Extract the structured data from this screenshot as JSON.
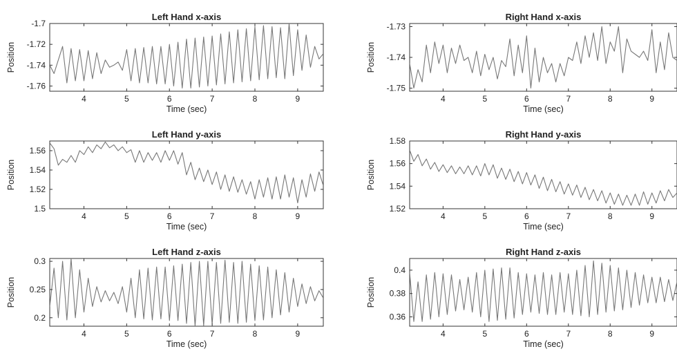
{
  "chart_data": [
    {
      "type": "line",
      "title": "Left Hand x-axis",
      "xlabel": "Time (sec)",
      "ylabel": "Position",
      "xlim": [
        3.2,
        9.6
      ],
      "ylim": [
        -1.765,
        -1.7
      ],
      "xticks": [
        "4",
        "5",
        "6",
        "7",
        "8",
        "9"
      ],
      "yticks": [
        "-1.7",
        "-1.72",
        "-1.74",
        "-1.76"
      ],
      "grid": false,
      "series": [
        {
          "color": "#777777",
          "x": [
            3.2,
            3.3,
            3.4,
            3.5,
            3.6,
            3.7,
            3.8,
            3.9,
            4.0,
            4.1,
            4.2,
            4.3,
            4.4,
            4.5,
            4.6,
            4.7,
            4.8,
            4.9,
            5.0,
            5.1,
            5.2,
            5.3,
            5.4,
            5.5,
            5.6,
            5.7,
            5.8,
            5.9,
            6.0,
            6.1,
            6.2,
            6.3,
            6.4,
            6.5,
            6.6,
            6.7,
            6.8,
            6.9,
            7.0,
            7.1,
            7.2,
            7.3,
            7.4,
            7.5,
            7.6,
            7.7,
            7.8,
            7.9,
            8.0,
            8.1,
            8.2,
            8.3,
            8.4,
            8.5,
            8.6,
            8.7,
            8.8,
            8.9,
            9.0,
            9.1,
            9.2,
            9.3,
            9.4,
            9.5,
            9.6
          ],
          "y": [
            -1.74,
            -1.748,
            -1.735,
            -1.722,
            -1.757,
            -1.724,
            -1.755,
            -1.725,
            -1.755,
            -1.726,
            -1.753,
            -1.728,
            -1.748,
            -1.735,
            -1.742,
            -1.74,
            -1.737,
            -1.745,
            -1.725,
            -1.755,
            -1.724,
            -1.757,
            -1.723,
            -1.757,
            -1.722,
            -1.758,
            -1.722,
            -1.758,
            -1.72,
            -1.76,
            -1.718,
            -1.762,
            -1.715,
            -1.762,
            -1.714,
            -1.761,
            -1.713,
            -1.76,
            -1.712,
            -1.759,
            -1.71,
            -1.758,
            -1.708,
            -1.757,
            -1.706,
            -1.756,
            -1.705,
            -1.755,
            -1.703,
            -1.754,
            -1.702,
            -1.753,
            -1.703,
            -1.752,
            -1.704,
            -1.753,
            -1.7,
            -1.75,
            -1.706,
            -1.745,
            -1.711,
            -1.742,
            -1.722,
            -1.734,
            -1.729
          ]
        }
      ]
    },
    {
      "type": "line",
      "title": "Right Hand x-axis",
      "xlabel": "Time (sec)",
      "ylabel": "Position",
      "xlim": [
        3.2,
        9.6
      ],
      "ylim": [
        -1.751,
        -1.729
      ],
      "xticks": [
        "4",
        "5",
        "6",
        "7",
        "8",
        "9"
      ],
      "yticks": [
        "-1.73",
        "-1.74",
        "-1.75"
      ],
      "grid": false,
      "series": [
        {
          "color": "#777777",
          "x": [
            3.2,
            3.3,
            3.4,
            3.5,
            3.6,
            3.7,
            3.8,
            3.9,
            4.0,
            4.1,
            4.2,
            4.3,
            4.4,
            4.5,
            4.6,
            4.7,
            4.8,
            4.9,
            5.0,
            5.1,
            5.2,
            5.3,
            5.4,
            5.5,
            5.6,
            5.7,
            5.8,
            5.9,
            6.0,
            6.1,
            6.2,
            6.3,
            6.4,
            6.5,
            6.6,
            6.7,
            6.8,
            6.9,
            7.0,
            7.1,
            7.2,
            7.3,
            7.4,
            7.5,
            7.6,
            7.7,
            7.8,
            7.9,
            8.0,
            8.1,
            8.2,
            8.3,
            8.4,
            8.5,
            8.6,
            8.7,
            8.8,
            8.9,
            9.0,
            9.1,
            9.2,
            9.3,
            9.4,
            9.5,
            9.6
          ],
          "y": [
            -1.742,
            -1.75,
            -1.744,
            -1.748,
            -1.736,
            -1.745,
            -1.735,
            -1.742,
            -1.736,
            -1.745,
            -1.737,
            -1.742,
            -1.736,
            -1.741,
            -1.74,
            -1.745,
            -1.738,
            -1.746,
            -1.739,
            -1.744,
            -1.74,
            -1.747,
            -1.741,
            -1.743,
            -1.734,
            -1.746,
            -1.736,
            -1.745,
            -1.733,
            -1.75,
            -1.737,
            -1.748,
            -1.74,
            -1.745,
            -1.742,
            -1.748,
            -1.742,
            -1.746,
            -1.74,
            -1.741,
            -1.735,
            -1.742,
            -1.733,
            -1.74,
            -1.732,
            -1.741,
            -1.73,
            -1.742,
            -1.735,
            -1.738,
            -1.73,
            -1.745,
            -1.734,
            -1.738,
            -1.739,
            -1.74,
            -1.738,
            -1.741,
            -1.731,
            -1.745,
            -1.735,
            -1.744,
            -1.732,
            -1.74,
            -1.741
          ]
        }
      ]
    },
    {
      "type": "line",
      "title": "Left Hand y-axis",
      "xlabel": "Time (sec)",
      "ylabel": "Position",
      "xlim": [
        3.2,
        9.6
      ],
      "ylim": [
        1.5,
        1.57
      ],
      "xticks": [
        "4",
        "5",
        "6",
        "7",
        "8",
        "9"
      ],
      "yticks": [
        "1.56",
        "1.54",
        "1.52",
        "1.5"
      ],
      "grid": false,
      "series": [
        {
          "color": "#777777",
          "x": [
            3.2,
            3.3,
            3.4,
            3.5,
            3.6,
            3.7,
            3.8,
            3.9,
            4.0,
            4.1,
            4.2,
            4.3,
            4.4,
            4.5,
            4.6,
            4.7,
            4.8,
            4.9,
            5.0,
            5.1,
            5.2,
            5.3,
            5.4,
            5.5,
            5.6,
            5.7,
            5.8,
            5.9,
            6.0,
            6.1,
            6.2,
            6.3,
            6.4,
            6.5,
            6.6,
            6.7,
            6.8,
            6.9,
            7.0,
            7.1,
            7.2,
            7.3,
            7.4,
            7.5,
            7.6,
            7.7,
            7.8,
            7.9,
            8.0,
            8.1,
            8.2,
            8.3,
            8.4,
            8.5,
            8.6,
            8.7,
            8.8,
            8.9,
            9.0,
            9.1,
            9.2,
            9.3,
            9.4,
            9.5,
            9.6
          ],
          "y": [
            1.568,
            1.562,
            1.545,
            1.551,
            1.548,
            1.555,
            1.548,
            1.56,
            1.556,
            1.564,
            1.558,
            1.566,
            1.562,
            1.569,
            1.563,
            1.566,
            1.56,
            1.564,
            1.558,
            1.561,
            1.548,
            1.56,
            1.548,
            1.558,
            1.55,
            1.558,
            1.548,
            1.56,
            1.55,
            1.56,
            1.546,
            1.558,
            1.535,
            1.548,
            1.53,
            1.542,
            1.528,
            1.54,
            1.525,
            1.538,
            1.52,
            1.535,
            1.518,
            1.533,
            1.517,
            1.53,
            1.515,
            1.528,
            1.51,
            1.53,
            1.512,
            1.532,
            1.51,
            1.533,
            1.51,
            1.535,
            1.512,
            1.532,
            1.506,
            1.53,
            1.512,
            1.536,
            1.518,
            1.538,
            1.524
          ]
        }
      ]
    },
    {
      "type": "line",
      "title": "Right Hand y-axis",
      "xlabel": "Time (sec)",
      "ylabel": "Position",
      "xlim": [
        3.2,
        9.6
      ],
      "ylim": [
        1.52,
        1.58
      ],
      "xticks": [
        "4",
        "5",
        "6",
        "7",
        "8",
        "9"
      ],
      "yticks": [
        "1.58",
        "1.56",
        "1.54",
        "1.52"
      ],
      "grid": false,
      "series": [
        {
          "color": "#777777",
          "x": [
            3.2,
            3.3,
            3.4,
            3.5,
            3.6,
            3.7,
            3.8,
            3.9,
            4.0,
            4.1,
            4.2,
            4.3,
            4.4,
            4.5,
            4.6,
            4.7,
            4.8,
            4.9,
            5.0,
            5.1,
            5.2,
            5.3,
            5.4,
            5.5,
            5.6,
            5.7,
            5.8,
            5.9,
            6.0,
            6.1,
            6.2,
            6.3,
            6.4,
            6.5,
            6.6,
            6.7,
            6.8,
            6.9,
            7.0,
            7.1,
            7.2,
            7.3,
            7.4,
            7.5,
            7.6,
            7.7,
            7.8,
            7.9,
            8.0,
            8.1,
            8.2,
            8.3,
            8.4,
            8.5,
            8.6,
            8.7,
            8.8,
            8.9,
            9.0,
            9.1,
            9.2,
            9.3,
            9.4,
            9.5,
            9.6
          ],
          "y": [
            1.572,
            1.562,
            1.568,
            1.558,
            1.564,
            1.555,
            1.561,
            1.553,
            1.559,
            1.552,
            1.558,
            1.551,
            1.557,
            1.551,
            1.558,
            1.55,
            1.558,
            1.549,
            1.56,
            1.55,
            1.559,
            1.547,
            1.556,
            1.546,
            1.555,
            1.544,
            1.553,
            1.542,
            1.552,
            1.541,
            1.55,
            1.538,
            1.548,
            1.536,
            1.546,
            1.535,
            1.544,
            1.533,
            1.542,
            1.532,
            1.541,
            1.53,
            1.539,
            1.528,
            1.537,
            1.527,
            1.536,
            1.525,
            1.534,
            1.524,
            1.533,
            1.523,
            1.532,
            1.523,
            1.533,
            1.523,
            1.535,
            1.524,
            1.534,
            1.525,
            1.536,
            1.527,
            1.537,
            1.53,
            1.534
          ]
        }
      ]
    },
    {
      "type": "line",
      "title": "Left Hand z-axis",
      "xlabel": "Time (sec)",
      "ylabel": "Position",
      "xlim": [
        3.2,
        9.6
      ],
      "ylim": [
        0.185,
        0.305
      ],
      "xticks": [
        "4",
        "5",
        "6",
        "7",
        "8",
        "9"
      ],
      "yticks": [
        "0.3",
        "0.25",
        "0.2"
      ],
      "grid": false,
      "series": [
        {
          "color": "#777777",
          "x": [
            3.2,
            3.3,
            3.4,
            3.5,
            3.6,
            3.7,
            3.8,
            3.9,
            4.0,
            4.1,
            4.2,
            4.3,
            4.4,
            4.5,
            4.6,
            4.7,
            4.8,
            4.9,
            5.0,
            5.1,
            5.2,
            5.3,
            5.4,
            5.5,
            5.6,
            5.7,
            5.8,
            5.9,
            6.0,
            6.1,
            6.2,
            6.3,
            6.4,
            6.5,
            6.6,
            6.7,
            6.8,
            6.9,
            7.0,
            7.1,
            7.2,
            7.3,
            7.4,
            7.5,
            7.6,
            7.7,
            7.8,
            7.9,
            8.0,
            8.1,
            8.2,
            8.3,
            8.4,
            8.5,
            8.6,
            8.7,
            8.8,
            8.9,
            9.0,
            9.1,
            9.2,
            9.3,
            9.4,
            9.5,
            9.6
          ],
          "y": [
            0.22,
            0.288,
            0.2,
            0.3,
            0.196,
            0.305,
            0.2,
            0.285,
            0.21,
            0.27,
            0.22,
            0.255,
            0.228,
            0.248,
            0.23,
            0.245,
            0.225,
            0.255,
            0.21,
            0.27,
            0.2,
            0.285,
            0.198,
            0.288,
            0.196,
            0.29,
            0.198,
            0.29,
            0.195,
            0.292,
            0.195,
            0.295,
            0.19,
            0.298,
            0.185,
            0.3,
            0.186,
            0.3,
            0.188,
            0.298,
            0.19,
            0.302,
            0.192,
            0.298,
            0.19,
            0.3,
            0.192,
            0.295,
            0.195,
            0.292,
            0.196,
            0.29,
            0.2,
            0.285,
            0.205,
            0.28,
            0.21,
            0.27,
            0.22,
            0.26,
            0.225,
            0.255,
            0.23,
            0.248,
            0.235
          ]
        }
      ]
    },
    {
      "type": "line",
      "title": "Right Hand z-axis",
      "xlabel": "Time (sec)",
      "ylabel": "Position",
      "xlim": [
        3.2,
        9.6
      ],
      "ylim": [
        0.352,
        0.41
      ],
      "xticks": [
        "4",
        "5",
        "6",
        "7",
        "8",
        "9"
      ],
      "yticks": [
        "0.4",
        "0.38",
        "0.36"
      ],
      "grid": false,
      "series": [
        {
          "color": "#777777",
          "x": [
            3.2,
            3.3,
            3.4,
            3.5,
            3.6,
            3.7,
            3.8,
            3.9,
            4.0,
            4.1,
            4.2,
            4.3,
            4.4,
            4.5,
            4.6,
            4.7,
            4.8,
            4.9,
            5.0,
            5.1,
            5.2,
            5.3,
            5.4,
            5.5,
            5.6,
            5.7,
            5.8,
            5.9,
            6.0,
            6.1,
            6.2,
            6.3,
            6.4,
            6.5,
            6.6,
            6.7,
            6.8,
            6.9,
            7.0,
            7.1,
            7.2,
            7.3,
            7.4,
            7.5,
            7.6,
            7.7,
            7.8,
            7.9,
            8.0,
            8.1,
            8.2,
            8.3,
            8.4,
            8.5,
            8.6,
            8.7,
            8.8,
            8.9,
            9.0,
            9.1,
            9.2,
            9.3,
            9.4,
            9.5,
            9.6
          ],
          "y": [
            0.398,
            0.356,
            0.39,
            0.356,
            0.396,
            0.358,
            0.398,
            0.36,
            0.397,
            0.362,
            0.396,
            0.365,
            0.392,
            0.366,
            0.394,
            0.364,
            0.398,
            0.36,
            0.4,
            0.356,
            0.401,
            0.357,
            0.402,
            0.358,
            0.402,
            0.359,
            0.398,
            0.362,
            0.397,
            0.364,
            0.396,
            0.363,
            0.398,
            0.362,
            0.396,
            0.362,
            0.398,
            0.364,
            0.397,
            0.362,
            0.4,
            0.361,
            0.404,
            0.36,
            0.408,
            0.362,
            0.406,
            0.364,
            0.404,
            0.365,
            0.402,
            0.366,
            0.4,
            0.368,
            0.398,
            0.37,
            0.396,
            0.372,
            0.394,
            0.372,
            0.394,
            0.373,
            0.392,
            0.374,
            0.39
          ]
        }
      ]
    }
  ]
}
